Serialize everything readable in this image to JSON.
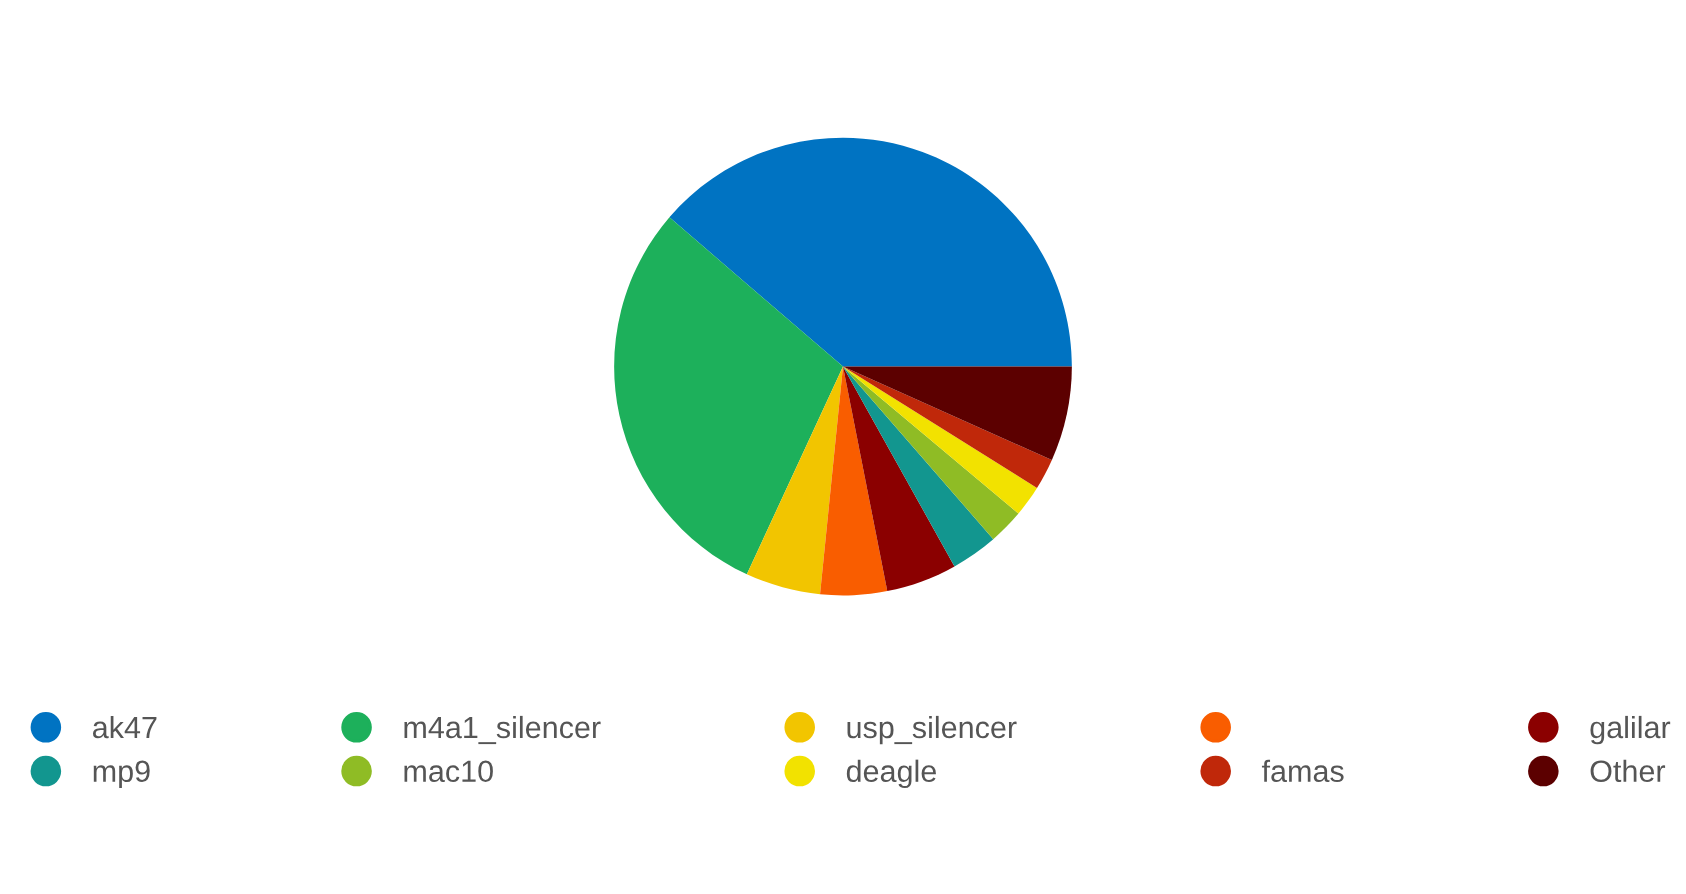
{
  "chart_data": {
    "type": "pie",
    "categories": [
      "ak47",
      "m4a1_silencer",
      "usp_silencer",
      null,
      "galilar",
      "mp9",
      "mac10",
      "deagle",
      "famas",
      "Other"
    ],
    "values": [
      38.7,
      29.4,
      5.3,
      4.7,
      5.0,
      3.3,
      2.5,
      2.2,
      2.2,
      6.7
    ],
    "colors": [
      "#0073c2",
      "#1db05b",
      "#f2c500",
      "#f95d00",
      "#8b0000",
      "#12968f",
      "#8fbc25",
      "#f2e200",
      "#c0280a",
      "#5c0000"
    ],
    "legend": "bottom"
  }
}
